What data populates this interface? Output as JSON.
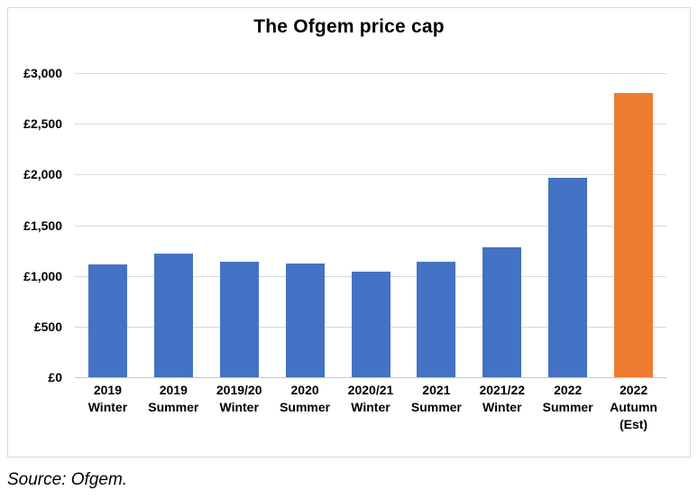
{
  "source_note": "Source: Ofgem.",
  "chart_data": {
    "type": "bar",
    "title": "The Ofgem price cap",
    "categories": [
      "2019\nWinter",
      "2019\nSummer",
      "2019/20\nWinter",
      "2020\nSummer",
      "2020/21\nWinter",
      "2021\nSummer",
      "2021/22\nWinter",
      "2022\nSummer",
      "2022\nAutumn\n(Est)"
    ],
    "values": [
      1110,
      1220,
      1140,
      1120,
      1040,
      1140,
      1280,
      1970,
      2800
    ],
    "bar_colors": [
      "#4472C4",
      "#4472C4",
      "#4472C4",
      "#4472C4",
      "#4472C4",
      "#4472C4",
      "#4472C4",
      "#4472C4",
      "#ED7D31"
    ],
    "series_color": "#4472C4",
    "highlight_color": "#ED7D31",
    "xlabel": "",
    "ylabel": "",
    "ylim": [
      0,
      3000
    ],
    "ytick_interval": 500,
    "ytick_labels": [
      "£0",
      "£500",
      "£1,000",
      "£1,500",
      "£2,000",
      "£2,500",
      "£3,000"
    ],
    "grid": true,
    "gridline_color": "#D9D9D9",
    "legend": false
  }
}
